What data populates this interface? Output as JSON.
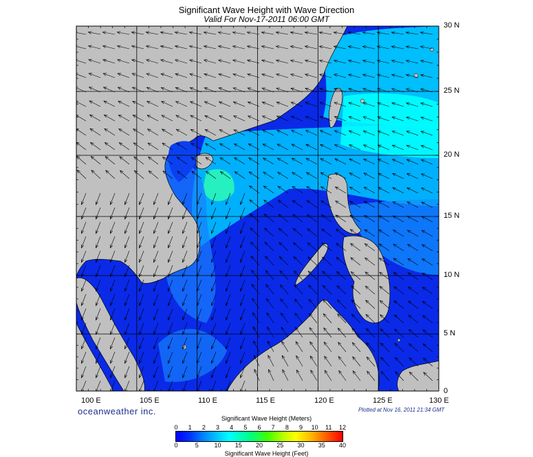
{
  "title": "Significant Wave Height with Wave Direction",
  "subtitle": "Valid For Nov-17-2011 06:00 GMT",
  "map": {
    "lon_range": [
      100,
      130
    ],
    "lat_range": [
      0,
      30
    ],
    "lat_labels": [
      "30 N",
      "25 N",
      "20 N",
      "15 N",
      "10 N",
      "5 N",
      "0"
    ],
    "lon_labels": [
      "100 E",
      "105 E",
      "110 E",
      "115 E",
      "120 E",
      "125 E",
      "130 E"
    ],
    "land_color": "#c0c0c0",
    "grid": true
  },
  "brand": "oceanweather inc.",
  "plotted": "Plotted at Nov 16, 2011 21:34 GMT",
  "colorbar": {
    "title_top": "Significant Wave Height (Meters)",
    "title_bottom": "Significant Wave Height (Feet)",
    "meters": [
      "0",
      "1",
      "2",
      "3",
      "4",
      "5",
      "6",
      "7",
      "8",
      "9",
      "10",
      "11",
      "12"
    ],
    "feet": [
      "0",
      "5",
      "10",
      "15",
      "20",
      "25",
      "30",
      "35",
      "40"
    ],
    "colors": [
      "#0000ff",
      "#0080ff",
      "#00ffff",
      "#00ff80",
      "#c0ff00",
      "#ffff00",
      "#ff6000",
      "#ff0000"
    ]
  }
}
